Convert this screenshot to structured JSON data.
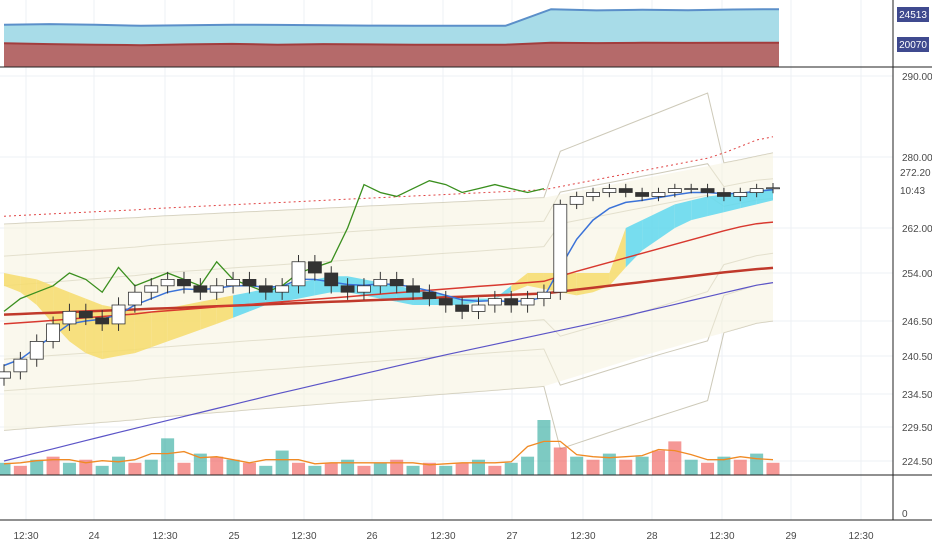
{
  "chart_data": {
    "type": "candlestick",
    "title": "",
    "top_panel": {
      "type": "area",
      "series": [
        {
          "color": "#5b8fc9",
          "fill": "#a8dce8",
          "values": [
            23100,
            23150,
            23100,
            23000,
            23050,
            23100,
            23080,
            23050,
            23020,
            23000,
            23000,
            23000,
            24513,
            24400,
            24450,
            24420,
            24480,
            24513
          ]
        },
        {
          "color": "#a23d3d",
          "fill": "#b56a6a",
          "values": [
            20050,
            20020,
            20000,
            19980,
            20010,
            20030,
            20000,
            20020,
            20010,
            20000,
            20000,
            20000,
            20070,
            20060,
            20070,
            20065,
            20070,
            20070
          ]
        }
      ],
      "labels": [
        {
          "text": "24513",
          "bg": "#3f4a8f"
        },
        {
          "text": "20070",
          "bg": "#3f4a8f"
        }
      ]
    },
    "price_panel": {
      "y_ticks": [
        "290.00",
        "280.00",
        "262.00",
        "254.00",
        "246.50",
        "240.50",
        "234.50",
        "229.50",
        "224.50"
      ],
      "tick_values": [
        290,
        280,
        262,
        254,
        246.5,
        240.5,
        234.5,
        229.5,
        224.5
      ],
      "price_labels": [
        {
          "text": "272.20",
          "bg": "#ffffff",
          "color": "#111111"
        },
        {
          "text": "10:43",
          "bg": "#ffffff",
          "color": "#111111"
        }
      ],
      "close": [
        238,
        240,
        243,
        246,
        248,
        247,
        246,
        249,
        251,
        252,
        253,
        252,
        251,
        252,
        253,
        252,
        251,
        252,
        256,
        254,
        252,
        251,
        252,
        253,
        252,
        251,
        250,
        249,
        248,
        249,
        250,
        249,
        250,
        251,
        268,
        270,
        271,
        272,
        271,
        270,
        271,
        272,
        272,
        271,
        270,
        271,
        272,
        272.2
      ],
      "ema_fast": [
        239,
        240,
        242,
        244,
        246,
        246.5,
        246.8,
        247.5,
        249,
        250,
        251,
        251.5,
        251.4,
        251.6,
        252,
        252,
        251.8,
        251.9,
        253,
        253,
        252.6,
        252.2,
        252.1,
        252.3,
        252.2,
        251.8,
        251.2,
        250.5,
        249.8,
        249.6,
        249.7,
        249.5,
        249.7,
        250.2,
        255,
        260,
        264,
        267,
        268.5,
        269,
        269.7,
        270.4,
        271,
        271,
        270.7,
        270.8,
        271.3,
        271.7
      ],
      "lagging_span": [
        248,
        250,
        251,
        252,
        254,
        253,
        251,
        255,
        252,
        253,
        254,
        253,
        252,
        256,
        253,
        252,
        251,
        252,
        254,
        255,
        256,
        262,
        273,
        271,
        270,
        272,
        274,
        273,
        271,
        272,
        273,
        272,
        271,
        272
      ],
      "ema_slow": [
        246,
        246.2,
        246.4,
        246.6,
        246.8,
        247,
        247.2,
        247.4,
        247.6,
        247.9,
        248.1,
        248.3,
        248.5,
        248.7,
        248.9,
        249.1,
        249.3,
        249.5,
        249.7,
        249.9,
        250.1,
        250.3,
        250.5,
        250.7,
        250.9,
        251.1,
        251.3,
        251.5,
        251.7,
        251.9,
        252.1,
        252.3,
        252.5,
        252.7,
        253.5,
        254.3,
        255.1,
        255.9,
        256.7,
        257.5,
        258.3,
        259.1,
        259.9,
        260.7,
        261.5,
        262.3,
        263.1,
        263.5
      ],
      "sma_long": [
        247.5,
        247.6,
        247.7,
        247.8,
        247.9,
        248.0,
        248.1,
        248.2,
        248.3,
        248.4,
        248.5,
        248.6,
        248.7,
        248.8,
        248.9,
        249.0,
        249.1,
        249.2,
        249.3,
        249.4,
        249.5,
        249.6,
        249.7,
        249.8,
        249.9,
        250.0,
        250.1,
        250.2,
        250.3,
        250.4,
        250.5,
        250.6,
        250.7,
        250.8,
        251.1,
        251.4,
        251.7,
        252.0,
        252.3,
        252.6,
        252.9,
        253.2,
        253.5,
        253.8,
        254.1,
        254.4,
        254.7,
        254.9
      ],
      "trend_low": [
        224.5,
        225.1,
        225.7,
        226.3,
        226.9,
        227.5,
        228.1,
        228.7,
        229.3,
        229.9,
        230.5,
        231.1,
        231.7,
        232.3,
        232.9,
        233.5,
        234.1,
        234.7,
        235.3,
        235.9,
        236.5,
        237.1,
        237.7,
        238.3,
        238.9,
        239.5,
        240.1,
        240.7,
        241.3,
        241.9,
        242.5,
        243.1,
        243.7,
        244.3,
        244.9,
        245.5,
        246.1,
        246.7,
        247.3,
        247.9,
        248.5,
        249.1,
        249.7,
        250.3,
        250.9,
        251.5,
        252.1,
        252.5
      ],
      "cloud_upper": [
        254,
        253.5,
        253,
        252,
        251,
        250,
        249,
        248.5,
        248,
        248,
        248.5,
        249,
        249.5,
        250,
        250.5,
        251,
        251.5,
        252,
        252.5,
        253,
        253.5,
        253.5,
        253,
        252.5,
        252,
        251.5,
        251,
        250.5,
        250,
        250,
        250,
        252,
        254,
        254,
        254,
        254,
        254,
        254,
        262,
        264,
        266,
        268,
        269,
        270,
        270.5,
        271,
        271.5,
        272
      ],
      "cloud_lower": [
        252,
        251,
        249,
        246,
        243,
        241,
        240,
        240.5,
        241,
        242,
        243,
        244,
        245,
        246,
        247,
        248,
        249,
        249.5,
        250,
        250.5,
        251,
        251,
        250.5,
        250,
        249.5,
        249,
        249,
        249,
        249,
        249.5,
        250,
        251,
        252,
        251.5,
        251,
        250.5,
        251,
        252,
        255,
        258,
        260,
        262,
        264,
        265,
        266,
        267,
        268,
        269
      ],
      "volume": [
        4,
        3,
        5,
        6,
        4,
        5,
        3,
        6,
        4,
        5,
        12,
        4,
        7,
        6,
        5,
        4,
        3,
        8,
        4,
        3,
        4,
        5,
        3,
        4,
        5,
        3,
        4,
        3,
        4,
        5,
        3,
        4,
        6,
        18,
        9,
        6,
        5,
        7,
        5,
        6,
        8,
        11,
        5,
        4,
        6,
        5,
        7,
        4
      ],
      "volume_color": [
        "up",
        "down",
        "up",
        "down",
        "up",
        "down",
        "up",
        "up",
        "down",
        "up",
        "up",
        "down",
        "up",
        "down",
        "up",
        "down",
        "up",
        "up",
        "down",
        "up",
        "down",
        "up",
        "down",
        "up",
        "down",
        "up",
        "down",
        "up",
        "down",
        "up",
        "down",
        "up",
        "up",
        "up",
        "down",
        "up",
        "down",
        "up",
        "down",
        "up",
        "down",
        "down",
        "up",
        "down",
        "up",
        "down",
        "up",
        "down"
      ]
    },
    "x_ticks": [
      "12:30",
      "24",
      "12:30",
      "25",
      "12:30",
      "26",
      "12:30",
      "27",
      "12:30",
      "28",
      "12:30",
      "29",
      "12:30"
    ],
    "bottom_tick": "0",
    "colors": {
      "up": "#26a69a",
      "down": "#ef5350",
      "cloud_bull": "#5fd8ee",
      "cloud_bear": "#f6dc6b",
      "ema_fast": "#3a72d8",
      "ema_slow": "#d8392f",
      "sma_long": "#c0392b",
      "lagging": "#3a8f1e",
      "trend_low": "#5b54c7",
      "volume_avg": "#f08a24",
      "bands": "#b8b29a"
    }
  }
}
